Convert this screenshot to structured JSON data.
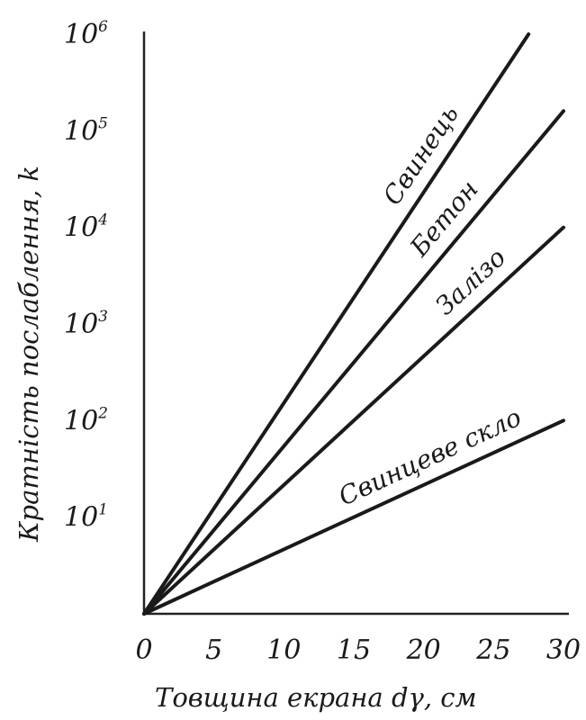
{
  "chart_data": {
    "type": "line",
    "title": "",
    "xlabel": "Товщина екрана dγ, см",
    "ylabel": "Кратність послаблення, k",
    "xlim": [
      0,
      30
    ],
    "ylim": [
      1,
      1000000
    ],
    "yscale": "log",
    "grid": false,
    "x_ticks": [
      "0",
      "5",
      "10",
      "15",
      "20",
      "25",
      "30"
    ],
    "y_ticks": [
      {
        "base": "10",
        "exp": "1"
      },
      {
        "base": "10",
        "exp": "2"
      },
      {
        "base": "10",
        "exp": "3"
      },
      {
        "base": "10",
        "exp": "4"
      },
      {
        "base": "10",
        "exp": "5"
      },
      {
        "base": "10",
        "exp": "6"
      }
    ],
    "series": [
      {
        "name": "Свинець",
        "x": [
          0,
          27.5
        ],
        "y": [
          1,
          1000000
        ]
      },
      {
        "name": "Бетон",
        "x": [
          0,
          30
        ],
        "y": [
          1,
          160000
        ]
      },
      {
        "name": "Залізо",
        "x": [
          0,
          30
        ],
        "y": [
          1,
          10000
        ]
      },
      {
        "name": "Свинцеве скло",
        "x": [
          0,
          30
        ],
        "y": [
          1,
          100
        ]
      }
    ]
  }
}
